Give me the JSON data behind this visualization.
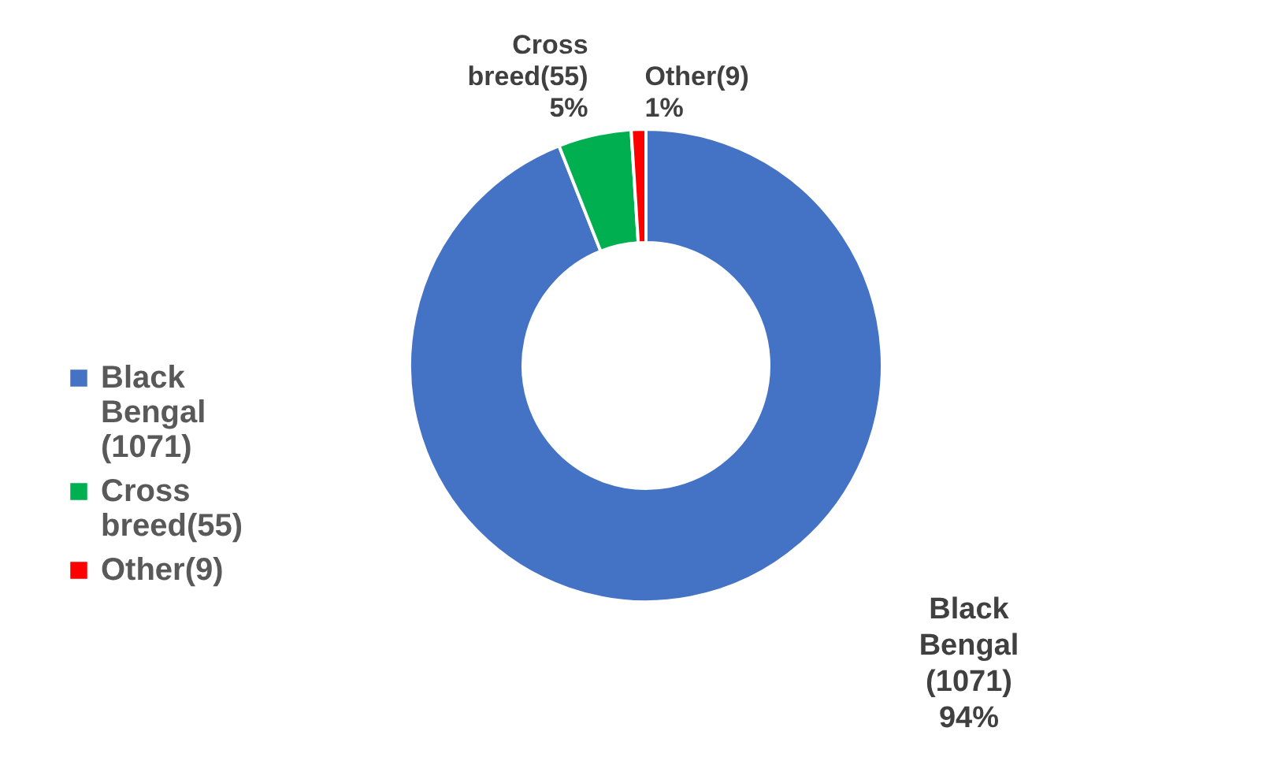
{
  "chart_data": {
    "type": "donut",
    "categories": [
      "Black Bengal (1071)",
      "Cross breed(55)",
      "Other(9)"
    ],
    "values": [
      94,
      5,
      1
    ],
    "value_labels": [
      "94%",
      "5%",
      "1%"
    ],
    "colors": [
      "#4472c4",
      "#00b050",
      "#ff0000"
    ],
    "legend": "left"
  }
}
